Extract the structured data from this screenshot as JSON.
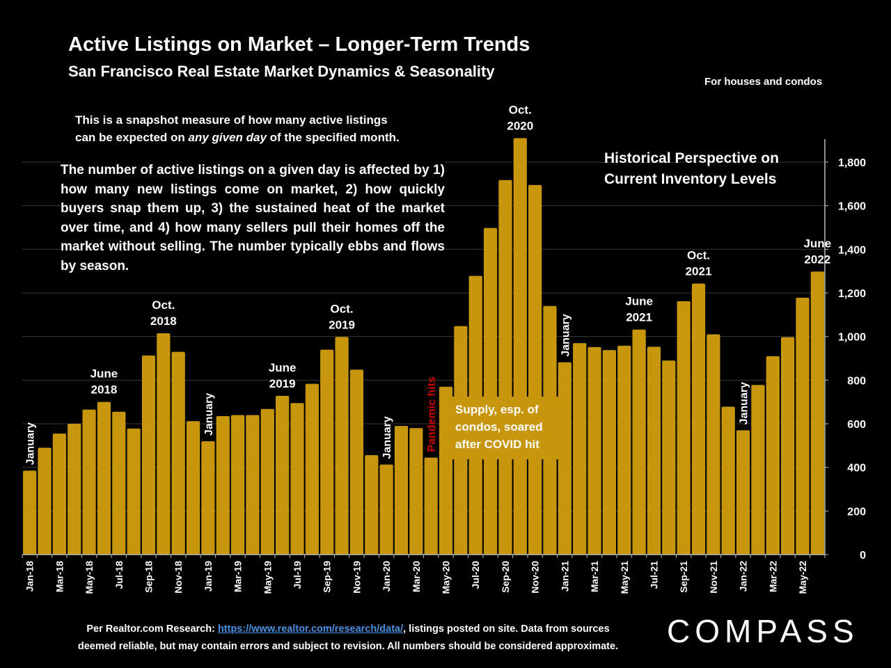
{
  "header": {
    "title": "Active Listings on Market – Longer-Term Trends",
    "subtitle": "San Francisco Real Estate Market Dynamics & Seasonality",
    "scope_note": "For houses and condos"
  },
  "notes": {
    "snapshot_line1": "This is a snapshot measure of how many active listings",
    "snapshot_line2_pre": "can be expected on ",
    "snapshot_line2_em": "any given day",
    "snapshot_line2_post": " of the specified month.",
    "body": "The number of active listings on a given day is affected by 1) how many new listings come on market, 2) how quickly buyers snap them up, 3) the sustained heat of the market over time, and 4) how many sellers pull their homes off the market without selling. The number typically ebbs and flows by season.",
    "perspective_line1": "Historical Perspective on",
    "perspective_line2": "Current Inventory Levels",
    "covid_box_line1": "Supply, esp. of",
    "covid_box_line2": "condos, soared",
    "covid_box_line3": "after COVID hit"
  },
  "footer": {
    "source_pre": "Per Realtor.com Research:  ",
    "source_link": "https://www.realtor.com/research/data/",
    "source_post": ", listings posted on site. Data from sources",
    "line2": "deemed reliable, but may contain errors and subject to revision. All numbers should be considered approximate.",
    "logo": "COMPASS"
  },
  "colors": {
    "background": "#000000",
    "bar": "#C8960C",
    "text": "#FFFFFF",
    "pandemic_label": "#CC0000",
    "link": "#4A90E2"
  },
  "chart_data": {
    "type": "bar",
    "title": "Active Listings on Market – Longer-Term Trends",
    "ylim": [
      0,
      1900
    ],
    "yticks": [
      0,
      200,
      400,
      600,
      800,
      1000,
      1200,
      1400,
      1600,
      1800
    ],
    "ytick_labels": [
      "0",
      "200",
      "400",
      "600",
      "800",
      "1,000",
      "1,200",
      "1,400",
      "1,600",
      "1,800"
    ],
    "y_axis_side": "right",
    "grid": true,
    "categories": [
      "Jan-18",
      "Feb-18",
      "Mar-18",
      "Apr-18",
      "May-18",
      "Jun-18",
      "Jul-18",
      "Aug-18",
      "Sep-18",
      "Oct-18",
      "Nov-18",
      "Dec-18",
      "Jan-19",
      "Feb-19",
      "Mar-19",
      "Apr-19",
      "May-19",
      "Jun-19",
      "Jul-19",
      "Aug-19",
      "Sep-19",
      "Oct-19",
      "Nov-19",
      "Dec-19",
      "Jan-20",
      "Feb-20",
      "Mar-20",
      "Apr-20",
      "May-20",
      "Jun-20",
      "Jul-20",
      "Aug-20",
      "Sep-20",
      "Oct-20",
      "Nov-20",
      "Dec-20",
      "Jan-21",
      "Feb-21",
      "Mar-21",
      "Apr-21",
      "May-21",
      "Jun-21",
      "Jul-21",
      "Aug-21",
      "Sep-21",
      "Oct-21",
      "Nov-21",
      "Dec-21",
      "Jan-22",
      "Feb-22",
      "Mar-22",
      "Apr-22",
      "May-22",
      "Jun-22"
    ],
    "values": [
      385,
      490,
      555,
      600,
      665,
      700,
      655,
      578,
      913,
      1015,
      930,
      612,
      520,
      635,
      640,
      640,
      668,
      728,
      695,
      783,
      940,
      998,
      848,
      456,
      413,
      590,
      580,
      445,
      770,
      1048,
      1278,
      1498,
      1718,
      1910,
      1695,
      1140,
      882,
      970,
      952,
      938,
      958,
      1032,
      953,
      890,
      1162,
      1243,
      1010,
      678,
      570,
      778,
      910,
      997,
      1178,
      1298
    ],
    "xtick_labels": [
      "Jan-18",
      "Mar-18",
      "May-18",
      "Jul-18",
      "Sep-18",
      "Nov-18",
      "Jan-19",
      "Mar-19",
      "May-19",
      "Jul-19",
      "Sep-19",
      "Nov-19",
      "Jan-20",
      "Mar-20",
      "May-20",
      "Jul-20",
      "Sep-20",
      "Nov-20",
      "Jan-21",
      "Mar-21",
      "May-21",
      "Jul-21",
      "Sep-21",
      "Nov-21",
      "Jan-22",
      "Mar-22",
      "May-22"
    ],
    "annotations": [
      {
        "text": [
          "January"
        ],
        "index": 0,
        "style": "vertical"
      },
      {
        "text": [
          "June",
          "2018"
        ],
        "index": 5,
        "style": "horizontal"
      },
      {
        "text": [
          "Oct.",
          "2018"
        ],
        "index": 9,
        "style": "horizontal"
      },
      {
        "text": [
          "January"
        ],
        "index": 12,
        "style": "vertical"
      },
      {
        "text": [
          "June",
          "2019"
        ],
        "index": 17,
        "style": "horizontal"
      },
      {
        "text": [
          "Oct.",
          "2019"
        ],
        "index": 21,
        "style": "horizontal"
      },
      {
        "text": [
          "January"
        ],
        "index": 24,
        "style": "vertical"
      },
      {
        "text": [
          "Pandemic hits"
        ],
        "index": 27,
        "style": "vertical-red"
      },
      {
        "text": [
          "Oct.",
          "2020"
        ],
        "index": 33,
        "style": "horizontal"
      },
      {
        "text": [
          "January"
        ],
        "index": 36,
        "style": "vertical"
      },
      {
        "text": [
          "June",
          "2021"
        ],
        "index": 41,
        "style": "horizontal"
      },
      {
        "text": [
          "Oct.",
          "2021"
        ],
        "index": 45,
        "style": "horizontal"
      },
      {
        "text": [
          "January"
        ],
        "index": 48,
        "style": "vertical"
      },
      {
        "text": [
          "June",
          "2022"
        ],
        "index": 53,
        "style": "horizontal"
      }
    ]
  }
}
